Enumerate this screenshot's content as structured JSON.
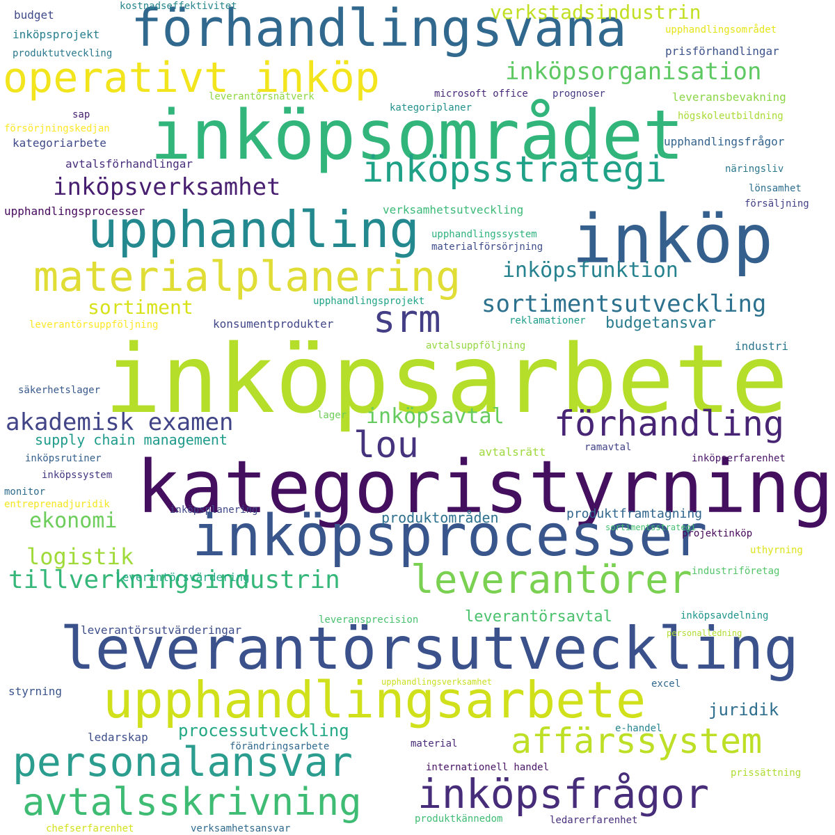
{
  "words": [
    {
      "text": "inköpsarbete",
      "color": "#b5de2b"
    },
    {
      "text": "kategoristyrning",
      "color": "#440f5e"
    },
    {
      "text": "inköpsområdet",
      "color": "#31b57b"
    },
    {
      "text": "inköp",
      "color": "#355f8d"
    },
    {
      "text": "leverantörsutveckling",
      "color": "#3b518b"
    },
    {
      "text": "inköpsprocesser",
      "color": "#39568c"
    },
    {
      "text": "förhandlingsvana",
      "color": "#31688e"
    },
    {
      "text": "upphandlingsarbete",
      "color": "#d0e11c"
    },
    {
      "text": "upphandling",
      "color": "#23898e"
    },
    {
      "text": "materialplanering",
      "color": "#e1dd37"
    },
    {
      "text": "operativt inköp",
      "color": "#f2e51d"
    },
    {
      "text": "personalansvar",
      "color": "#2a9d8f"
    },
    {
      "text": "inköpsfrågor",
      "color": "#472c7a"
    },
    {
      "text": "leverantörer",
      "color": "#7ad151"
    },
    {
      "text": "avtalsskrivning",
      "color": "#3fbc73"
    },
    {
      "text": "srm",
      "color": "#433e85"
    },
    {
      "text": "inköpsstrategi",
      "color": "#1fa187"
    },
    {
      "text": "förhandling",
      "color": "#482475"
    },
    {
      "text": "affärssystem",
      "color": "#bddf26"
    },
    {
      "text": "tillverkningsindustrin",
      "color": "#35b779"
    },
    {
      "text": "lou",
      "color": "#46337e"
    },
    {
      "text": "inköpsverksamhet",
      "color": "#481f70"
    },
    {
      "text": "sortimentsutveckling",
      "color": "#2c718e"
    },
    {
      "text": "inköpsorganisation",
      "color": "#5ec962"
    },
    {
      "text": "akademisk examen",
      "color": "#414487"
    },
    {
      "text": "inköpsfunktion",
      "color": "#26828e"
    },
    {
      "text": "verkstadsindustrin",
      "color": "#c2df23"
    },
    {
      "text": "logistik",
      "color": "#a0da39"
    },
    {
      "text": "ekonomi",
      "color": "#6ccd5a"
    },
    {
      "text": "sortiment",
      "color": "#d8e219"
    },
    {
      "text": "juridik",
      "color": "#2e6e8e"
    },
    {
      "text": "inköpsavtal",
      "color": "#65cb5e"
    },
    {
      "text": "processutveckling",
      "color": "#22a884"
    },
    {
      "text": "budgetansvar",
      "color": "#297b8e"
    },
    {
      "text": "leverantörsavtal",
      "color": "#4ac16d"
    },
    {
      "text": "produktområden",
      "color": "#2d708e"
    },
    {
      "text": "supply chain management",
      "color": "#1e9b8a"
    },
    {
      "text": "produktframtagning",
      "color": "#31678e"
    },
    {
      "text": "budget",
      "color": "#3e4a89"
    },
    {
      "text": "kostnadseffektivitet",
      "color": "#25848e"
    },
    {
      "text": "inköpsprojekt",
      "color": "#277f8e"
    },
    {
      "text": "produktutveckling",
      "color": "#2a788e"
    },
    {
      "text": "upphandlingsområdet",
      "color": "#e5e419"
    },
    {
      "text": "prisförhandlingar",
      "color": "#3b528b"
    },
    {
      "text": "leveransbevakning",
      "color": "#8bd646"
    },
    {
      "text": "leverantörsnätverk",
      "color": "#8fd744"
    },
    {
      "text": "microsoft office",
      "color": "#482979"
    },
    {
      "text": "prognoser",
      "color": "#443a83"
    },
    {
      "text": "kategoriplaner",
      "color": "#21918c"
    },
    {
      "text": "högskoleutbildning",
      "color": "#a8db34"
    },
    {
      "text": "sap",
      "color": "#482173"
    },
    {
      "text": "försörjningskedjan",
      "color": "#fde725"
    },
    {
      "text": "kategoriarbete",
      "color": "#3e4989"
    },
    {
      "text": "upphandlingsfrågor",
      "color": "#33638d"
    },
    {
      "text": "avtalsförhandlingar",
      "color": "#472d7b"
    },
    {
      "text": "näringsliv",
      "color": "#2a778e"
    },
    {
      "text": "lönsamhet",
      "color": "#2e6f8e"
    },
    {
      "text": "försäljning",
      "color": "#424086"
    },
    {
      "text": "upphandlingsprocesser",
      "color": "#46085c"
    },
    {
      "text": "verksamhetsutveckling",
      "color": "#3aba76"
    },
    {
      "text": "upphandlingssystem",
      "color": "#2db27d"
    },
    {
      "text": "materialförsörjning",
      "color": "#3e4c8a"
    },
    {
      "text": "upphandlingsprojekt",
      "color": "#20a486"
    },
    {
      "text": "leverantörsuppföljning",
      "color": "#fde725"
    },
    {
      "text": "konsumentprodukter",
      "color": "#404688"
    },
    {
      "text": "reklamationer",
      "color": "#1f9e89"
    },
    {
      "text": "avtalsuppföljning",
      "color": "#93d741"
    },
    {
      "text": "industri",
      "color": "#2b758e"
    },
    {
      "text": "säkerhetslager",
      "color": "#38598c"
    },
    {
      "text": "lager",
      "color": "#6ece58"
    },
    {
      "text": "avtalsrätt",
      "color": "#9dd93b"
    },
    {
      "text": "ramavtal",
      "color": "#414287"
    },
    {
      "text": "inköpserfarenhet",
      "color": "#481467"
    },
    {
      "text": "inköpsrutiner",
      "color": "#34608d"
    },
    {
      "text": "inköpssystem",
      "color": "#453781"
    },
    {
      "text": "monitor",
      "color": "#2f6c8e"
    },
    {
      "text": "entreprenadjuridik",
      "color": "#f4e61e"
    },
    {
      "text": "inköpsplanering",
      "color": "#3f4788"
    },
    {
      "text": "sortimentsstrategi",
      "color": "#44bf70"
    },
    {
      "text": "projektinköp",
      "color": "#450559"
    },
    {
      "text": "uthyrning",
      "color": "#dde318"
    },
    {
      "text": "leverantörsvärdering",
      "color": "#23a983"
    },
    {
      "text": "industriföretag",
      "color": "#54c568"
    },
    {
      "text": "leveransprecision",
      "color": "#48c16e"
    },
    {
      "text": "inköpsavdelning",
      "color": "#1f958b"
    },
    {
      "text": "leverantörsutvärderingar",
      "color": "#3d4d8a"
    },
    {
      "text": "personalledning",
      "color": "#b0dd2f"
    },
    {
      "text": "upphandlingsverksamhet",
      "color": "#c8e020"
    },
    {
      "text": "excel",
      "color": "#31688e"
    },
    {
      "text": "styrning",
      "color": "#3a548c"
    },
    {
      "text": "ledarskap",
      "color": "#3d4e8a"
    },
    {
      "text": "e-handel",
      "color": "#25838e"
    },
    {
      "text": "förändringsarbete",
      "color": "#30698e"
    },
    {
      "text": "material",
      "color": "#482878"
    },
    {
      "text": "internationell handel",
      "color": "#471365"
    },
    {
      "text": "prissättning",
      "color": "#addc30"
    },
    {
      "text": "chefserfarenhet",
      "color": "#d2e21b"
    },
    {
      "text": "verksamhetsansvar",
      "color": "#306a8e"
    },
    {
      "text": "produktkännedom",
      "color": "#3fbc73"
    },
    {
      "text": "ledarerfarenhet",
      "color": "#472f7d"
    }
  ]
}
